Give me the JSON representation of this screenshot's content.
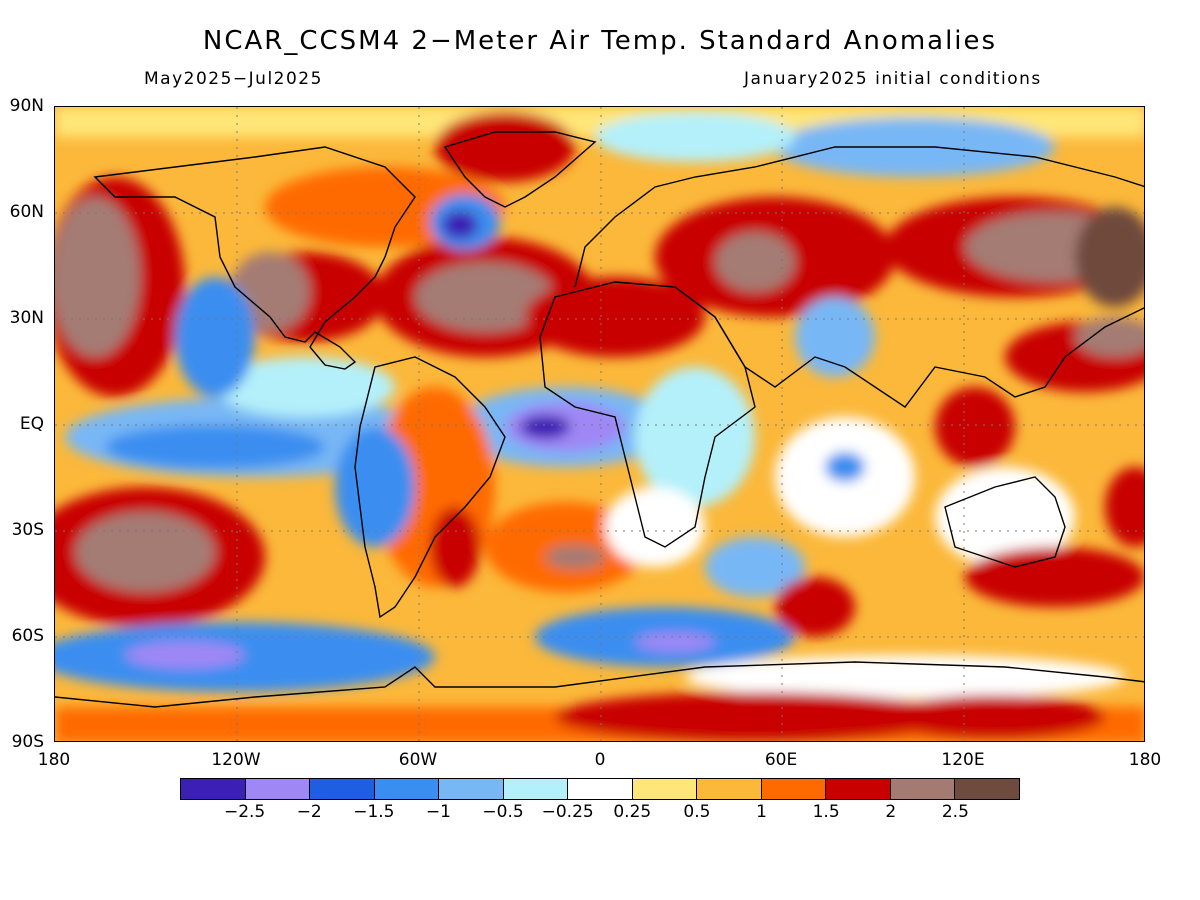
{
  "header": {
    "title": "NCAR_CCSM4 2−Meter Air Temp. Standard Anomalies",
    "period": "May2025−Jul2025",
    "init": "January2025 initial conditions"
  },
  "axes": {
    "y_labels": [
      "90N",
      "60N",
      "30N",
      "EQ",
      "30S",
      "60S",
      "90S"
    ],
    "x_labels": [
      "180",
      "120W",
      "60W",
      "0",
      "60E",
      "120E",
      "180"
    ]
  },
  "colorbar": {
    "colors": [
      "#3c1fb4",
      "#9f87f5",
      "#1e5ee0",
      "#3a8ef0",
      "#78b7f5",
      "#b4f0fa",
      "#ffffff",
      "#ffe678",
      "#fbb83a",
      "#ff6a00",
      "#c80000",
      "#a47b73",
      "#6f4a3e"
    ],
    "ticks": [
      "−2.5",
      "−2",
      "−1.5",
      "−1",
      "−0.5",
      "−0.25",
      "0.25",
      "0.5",
      "1",
      "1.5",
      "2",
      "2.5"
    ]
  }
}
